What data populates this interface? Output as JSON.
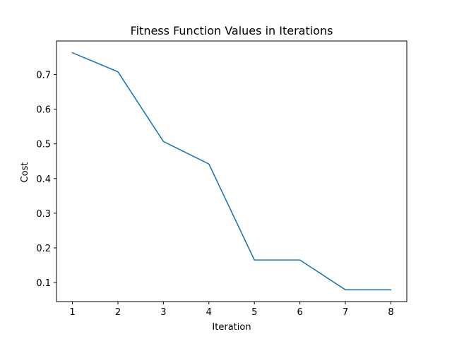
{
  "chart_data": {
    "type": "line",
    "title": "Fitness Function Values in Iterations",
    "xlabel": "Iteration",
    "ylabel": "Cost",
    "x": [
      1,
      2,
      3,
      4,
      5,
      6,
      7,
      8
    ],
    "series": [
      {
        "values": [
          0.763,
          0.708,
          0.507,
          0.442,
          0.165,
          0.165,
          0.079,
          0.079
        ],
        "color": "#1f77b4"
      }
    ],
    "xlim": [
      0.65,
      8.35
    ],
    "ylim": [
      0.045,
      0.797
    ],
    "xticks": [
      1,
      2,
      3,
      4,
      5,
      6,
      7,
      8
    ],
    "yticks": [
      0.1,
      0.2,
      0.3,
      0.4,
      0.5,
      0.6,
      0.7
    ],
    "grid": false
  }
}
